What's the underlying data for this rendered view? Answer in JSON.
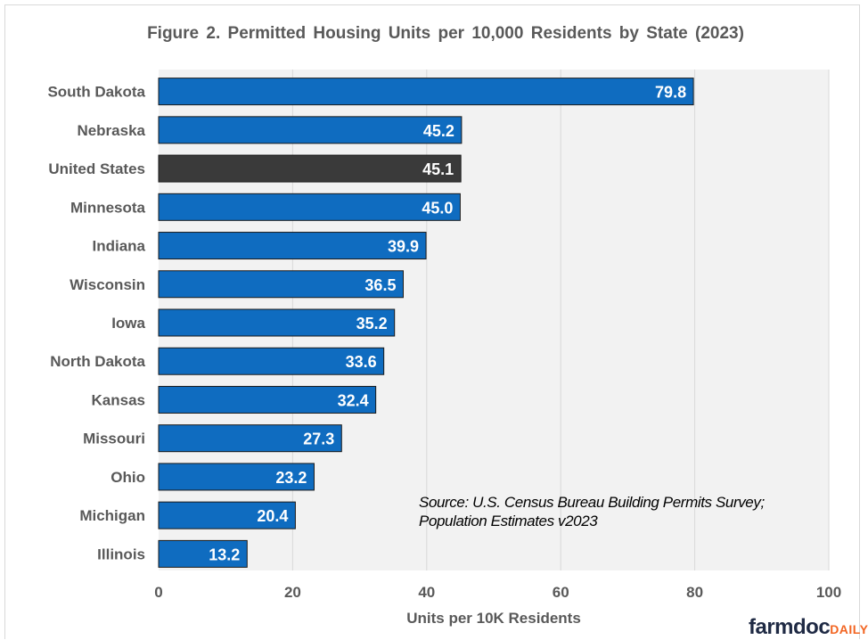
{
  "chart_data": {
    "type": "bar",
    "orientation": "horizontal",
    "title": "Figure 2. Permitted Housing Units per 10,000 Residents by State (2023)",
    "xlabel": "Units per 10K Residents",
    "ylabel": "",
    "xlim": [
      0,
      100
    ],
    "xticks": [
      0,
      20,
      40,
      60,
      80,
      100
    ],
    "grid": "vertical",
    "categories": [
      "South Dakota",
      "Nebraska",
      "United States",
      "Minnesota",
      "Indiana",
      "Wisconsin",
      "Iowa",
      "North Dakota",
      "Kansas",
      "Missouri",
      "Ohio",
      "Michigan",
      "Illinois"
    ],
    "values": [
      79.8,
      45.2,
      45.1,
      45.0,
      39.9,
      36.5,
      35.2,
      33.6,
      32.4,
      27.3,
      23.2,
      20.4,
      13.2
    ],
    "data_labels": [
      "79.8",
      "45.2",
      "45.1",
      "45.0",
      "39.9",
      "36.5",
      "35.2",
      "33.6",
      "32.4",
      "27.3",
      "23.2",
      "20.4",
      "13.2"
    ],
    "highlight_category": "United States",
    "colors": {
      "bar": "#0f6cc0",
      "highlight": "#3a3a3a",
      "plot_bg": "#f2f2f2",
      "grid": "#d9d9d9",
      "label": "#595959"
    },
    "annotation": "Source: U.S. Census Bureau Building Permits Survey; Population Estimates v2023"
  },
  "branding": {
    "logo_main": "farmdoc",
    "logo_accent": "DAILY"
  }
}
